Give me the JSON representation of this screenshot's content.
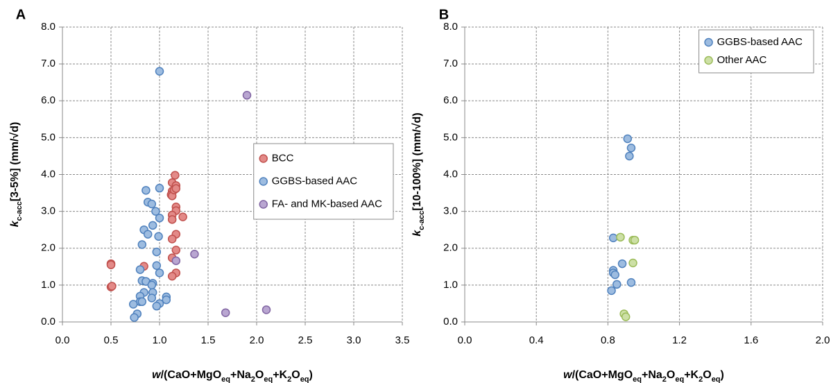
{
  "chart_data": [
    {
      "type": "scatter",
      "panel": "A",
      "ylabel": [
        {
          "text": "k",
          "style": "italic"
        },
        {
          "text": "c-acc",
          "style": "sub"
        },
        {
          "text": "[3-5%] (mm/√d)"
        }
      ],
      "xlabel": [
        {
          "text": "w",
          "style": "italic"
        },
        {
          "text": "/(CaO+MgO"
        },
        {
          "text": "eq",
          "style": "sub"
        },
        {
          "text": "+Na"
        },
        {
          "text": "2",
          "style": "sub"
        },
        {
          "text": "O"
        },
        {
          "text": "eq",
          "style": "sub"
        },
        {
          "text": "+K"
        },
        {
          "text": "2",
          "style": "sub"
        },
        {
          "text": "O"
        },
        {
          "text": "eq",
          "style": "sub"
        },
        {
          "text": ")"
        }
      ],
      "xlim": [
        0,
        3.5
      ],
      "xticks": [
        {
          "value": 0,
          "label": "0.0"
        },
        {
          "value": 0.5,
          "label": "0.5"
        },
        {
          "value": 1,
          "label": "1.0"
        },
        {
          "value": 1.5,
          "label": "1.5"
        },
        {
          "value": 2,
          "label": "2.0"
        },
        {
          "value": 2.5,
          "label": "2.5"
        },
        {
          "value": 3,
          "label": "3.0"
        },
        {
          "value": 3.5,
          "label": "3.5"
        }
      ],
      "ylim": [
        0,
        8
      ],
      "yticks": [
        {
          "value": 0,
          "label": "0.0"
        },
        {
          "value": 1,
          "label": "1.0"
        },
        {
          "value": 2,
          "label": "2.0"
        },
        {
          "value": 3,
          "label": "3.0"
        },
        {
          "value": 4,
          "label": "4.0"
        },
        {
          "value": 5,
          "label": "5.0"
        },
        {
          "value": 6,
          "label": "6.0"
        },
        {
          "value": 7,
          "label": "7.0"
        },
        {
          "value": 8,
          "label": "8.0"
        }
      ],
      "grid": true,
      "legend_loc": "center right",
      "series": [
        {
          "name": "BCC",
          "color": "#e38a88",
          "edgecolor": "#c0504d",
          "x": [
            0.5,
            0.5,
            0.5,
            0.51,
            0.84,
            1.13,
            1.13,
            1.12,
            1.13,
            1.15,
            1.16,
            1.17,
            1.17,
            1.17,
            1.17,
            1.13,
            1.13,
            1.24,
            1.17,
            1.13,
            1.17,
            1.13,
            1.17,
            1.13
          ],
          "values": [
            1.58,
            1.55,
            0.95,
            0.97,
            1.51,
            3.78,
            3.55,
            3.45,
            3.42,
            3.58,
            3.98,
            3.7,
            3.62,
            3.12,
            3.02,
            2.9,
            2.78,
            2.85,
            2.38,
            2.25,
            1.95,
            1.74,
            1.33,
            1.24
          ]
        },
        {
          "name": "GGBS-based AAC",
          "color": "#9dbce0",
          "edgecolor": "#4f81bd",
          "x": [
            1.0,
            0.86,
            1.0,
            0.88,
            0.92,
            0.96,
            1.0,
            0.84,
            0.88,
            0.93,
            0.99,
            0.82,
            0.97,
            0.8,
            0.97,
            1.0,
            0.82,
            0.86,
            0.93,
            0.92,
            0.84,
            0.93,
            0.8,
            0.8,
            0.82,
            0.92,
            1.07,
            1.07,
            1.0,
            0.97,
            0.73,
            0.77,
            0.74
          ],
          "values": [
            6.8,
            3.57,
            3.63,
            3.25,
            3.2,
            3.0,
            2.82,
            2.5,
            2.38,
            2.62,
            2.32,
            2.1,
            1.9,
            1.42,
            1.53,
            1.33,
            1.12,
            1.1,
            1.05,
            1.0,
            0.8,
            0.8,
            0.7,
            0.55,
            0.55,
            0.65,
            0.68,
            0.6,
            0.5,
            0.43,
            0.48,
            0.22,
            0.12
          ]
        },
        {
          "name": "FA- and MK-based AAC",
          "color": "#b9a6d1",
          "edgecolor": "#8064a2",
          "x": [
            1.9,
            1.36,
            1.17,
            1.68,
            2.1
          ],
          "values": [
            6.15,
            1.84,
            1.66,
            0.25,
            0.33
          ]
        }
      ]
    },
    {
      "type": "scatter",
      "panel": "B",
      "ylabel": [
        {
          "text": "k",
          "style": "italic"
        },
        {
          "text": "c-acc",
          "style": "sub"
        },
        {
          "text": "[10-100%] (mm/√d)"
        }
      ],
      "xlabel": [
        {
          "text": "w",
          "style": "italic"
        },
        {
          "text": "/(CaO+MgO"
        },
        {
          "text": "eq",
          "style": "sub"
        },
        {
          "text": "+Na"
        },
        {
          "text": "2",
          "style": "sub"
        },
        {
          "text": "O"
        },
        {
          "text": "eq",
          "style": "sub"
        },
        {
          "text": "+K"
        },
        {
          "text": "2",
          "style": "sub"
        },
        {
          "text": "O"
        },
        {
          "text": "eq",
          "style": "sub"
        },
        {
          "text": ")"
        }
      ],
      "xlim": [
        0,
        2
      ],
      "xticks": [
        {
          "value": 0,
          "label": "0.0"
        },
        {
          "value": 0.4,
          "label": "0.4"
        },
        {
          "value": 0.8,
          "label": "0.8"
        },
        {
          "value": 1.2,
          "label": "1.2"
        },
        {
          "value": 1.6,
          "label": "1.6"
        },
        {
          "value": 2,
          "label": "2.0"
        }
      ],
      "ylim": [
        0,
        8
      ],
      "yticks": [
        {
          "value": 0,
          "label": "0.0"
        },
        {
          "value": 1,
          "label": "1.0"
        },
        {
          "value": 2,
          "label": "2.0"
        },
        {
          "value": 3,
          "label": "3.0"
        },
        {
          "value": 4,
          "label": "4.0"
        },
        {
          "value": 5,
          "label": "5.0"
        },
        {
          "value": 6,
          "label": "6.0"
        },
        {
          "value": 7,
          "label": "7.0"
        },
        {
          "value": 8,
          "label": "8.0"
        }
      ],
      "grid": true,
      "legend_loc": "upper right",
      "series": [
        {
          "name": "GGBS-based AAC",
          "color": "#9dbce0",
          "edgecolor": "#4f81bd",
          "x": [
            0.91,
            0.93,
            0.92,
            0.83,
            0.88,
            0.83,
            0.83,
            0.84,
            0.85,
            0.93,
            0.82
          ],
          "values": [
            4.97,
            4.72,
            4.5,
            2.28,
            1.58,
            1.4,
            1.33,
            1.28,
            1.02,
            1.07,
            0.85
          ]
        },
        {
          "name": "Other AAC",
          "color": "#cde0a6",
          "edgecolor": "#9bbb59",
          "x": [
            0.87,
            0.94,
            0.95,
            0.94,
            0.89,
            0.9
          ],
          "values": [
            2.3,
            2.22,
            2.22,
            1.6,
            0.22,
            0.14
          ]
        }
      ]
    }
  ]
}
